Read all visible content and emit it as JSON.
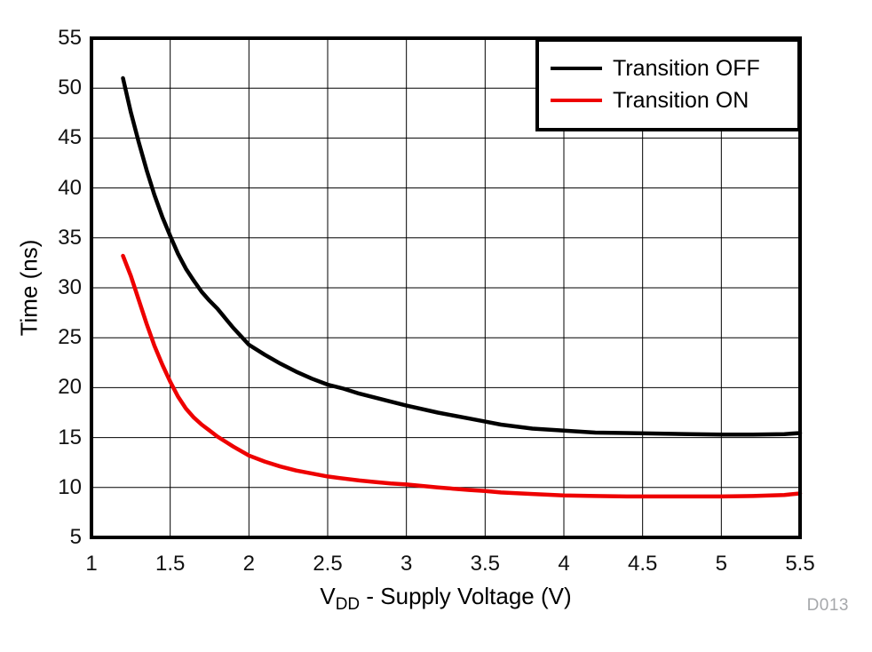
{
  "chart_data": {
    "type": "line",
    "title": "",
    "xlabel": "VDD - Supply Voltage (V)",
    "xlabel_parts": {
      "main": "V",
      "sub": "DD",
      "rest": " - Supply Voltage (V)"
    },
    "ylabel": "Time (ns)",
    "xlim": [
      1,
      5.5
    ],
    "ylim": [
      5,
      55
    ],
    "xticks": [
      1,
      1.5,
      2,
      2.5,
      3,
      3.5,
      4,
      4.5,
      5,
      5.5
    ],
    "yticks": [
      5,
      10,
      15,
      20,
      25,
      30,
      35,
      40,
      45,
      50,
      55
    ],
    "grid": true,
    "legend_position": "top-right",
    "watermark": "D013",
    "colors": {
      "series_off": "#000000",
      "series_on": "#ee0000",
      "grid": "#000000",
      "frame": "#000000",
      "watermark": "#a6a8ab"
    },
    "series": [
      {
        "name": "Transition OFF",
        "color": "#000000",
        "points": [
          [
            1.2,
            51.0
          ],
          [
            1.25,
            47.6
          ],
          [
            1.3,
            44.6
          ],
          [
            1.35,
            41.8
          ],
          [
            1.4,
            39.3
          ],
          [
            1.45,
            37.1
          ],
          [
            1.5,
            35.2
          ],
          [
            1.55,
            33.4
          ],
          [
            1.6,
            31.9
          ],
          [
            1.65,
            30.7
          ],
          [
            1.7,
            29.6
          ],
          [
            1.75,
            28.7
          ],
          [
            1.8,
            27.9
          ],
          [
            1.9,
            26.0
          ],
          [
            2.0,
            24.3
          ],
          [
            2.1,
            23.3
          ],
          [
            2.2,
            22.4
          ],
          [
            2.3,
            21.6
          ],
          [
            2.4,
            20.9
          ],
          [
            2.5,
            20.3
          ],
          [
            2.6,
            19.9
          ],
          [
            2.7,
            19.4
          ],
          [
            2.8,
            19.0
          ],
          [
            2.9,
            18.6
          ],
          [
            3.0,
            18.2
          ],
          [
            3.2,
            17.5
          ],
          [
            3.4,
            16.9
          ],
          [
            3.5,
            16.6
          ],
          [
            3.6,
            16.3
          ],
          [
            3.8,
            15.9
          ],
          [
            4.0,
            15.7
          ],
          [
            4.2,
            15.5
          ],
          [
            4.4,
            15.45
          ],
          [
            4.6,
            15.4
          ],
          [
            4.8,
            15.35
          ],
          [
            5.0,
            15.3
          ],
          [
            5.2,
            15.3
          ],
          [
            5.4,
            15.35
          ],
          [
            5.5,
            15.45
          ]
        ]
      },
      {
        "name": "Transition ON",
        "color": "#ee0000",
        "points": [
          [
            1.2,
            33.2
          ],
          [
            1.25,
            31.2
          ],
          [
            1.3,
            28.8
          ],
          [
            1.35,
            26.4
          ],
          [
            1.4,
            24.2
          ],
          [
            1.45,
            22.3
          ],
          [
            1.5,
            20.6
          ],
          [
            1.55,
            19.1
          ],
          [
            1.6,
            17.9
          ],
          [
            1.65,
            17.0
          ],
          [
            1.7,
            16.3
          ],
          [
            1.75,
            15.7
          ],
          [
            1.8,
            15.1
          ],
          [
            1.9,
            14.1
          ],
          [
            2.0,
            13.2
          ],
          [
            2.1,
            12.6
          ],
          [
            2.2,
            12.1
          ],
          [
            2.3,
            11.7
          ],
          [
            2.4,
            11.4
          ],
          [
            2.5,
            11.1
          ],
          [
            2.6,
            10.9
          ],
          [
            2.7,
            10.7
          ],
          [
            2.8,
            10.55
          ],
          [
            2.9,
            10.4
          ],
          [
            3.0,
            10.3
          ],
          [
            3.2,
            10.0
          ],
          [
            3.4,
            9.75
          ],
          [
            3.5,
            9.65
          ],
          [
            3.6,
            9.5
          ],
          [
            3.8,
            9.35
          ],
          [
            4.0,
            9.2
          ],
          [
            4.2,
            9.15
          ],
          [
            4.4,
            9.1
          ],
          [
            4.6,
            9.1
          ],
          [
            4.8,
            9.1
          ],
          [
            5.0,
            9.1
          ],
          [
            5.2,
            9.15
          ],
          [
            5.4,
            9.25
          ],
          [
            5.5,
            9.4
          ]
        ]
      }
    ]
  }
}
